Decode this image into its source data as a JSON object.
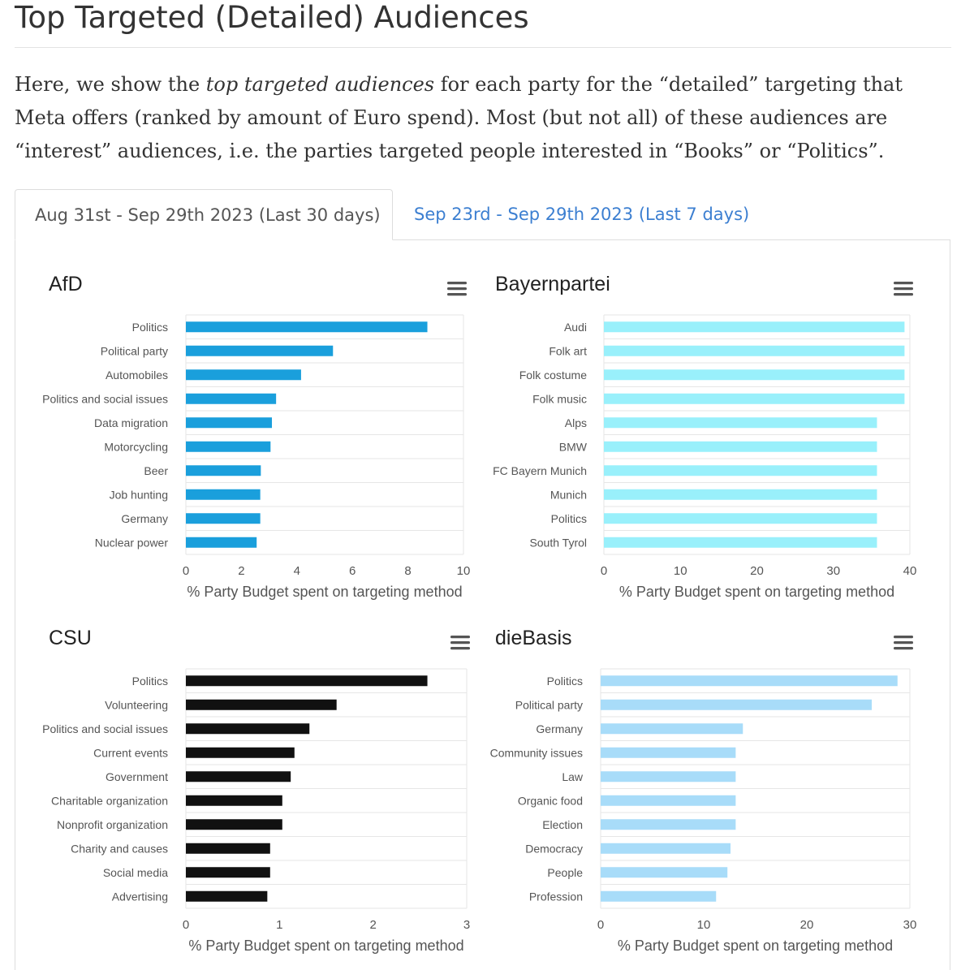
{
  "page": {
    "heading": "Top Targeted (Detailed) Audiences",
    "intro_before": "Here, we show the ",
    "intro_em": "top targeted audiences",
    "intro_after": " for each party for the “detailed” targeting that Meta offers (ranked by amount of Euro spend). Most (but not all) of these audiences are “interest” audiences, i.e. the parties targeted people interested in “Books” or “Politics”."
  },
  "tabs": [
    {
      "label": "Aug 31st - Sep 29th 2023 (Last 30 days)",
      "active": true
    },
    {
      "label": "Sep 23rd - Sep 29th 2023 (Last 7 days)",
      "active": false
    }
  ],
  "menu_icon": "hamburger-menu-icon",
  "chart_data": [
    {
      "type": "bar",
      "title": "AfD",
      "color": "#1a9fdc",
      "categories": [
        "Politics",
        "Political party",
        "Automobiles",
        "Politics and social issues",
        "Data migration",
        "Motorcycling",
        "Beer",
        "Job hunting",
        "Germany",
        "Nuclear power"
      ],
      "values": [
        8.7,
        5.3,
        4.15,
        3.25,
        3.1,
        3.05,
        2.7,
        2.68,
        2.68,
        2.55
      ],
      "xlim": [
        0,
        10
      ],
      "xticks": [
        "0",
        "2",
        "4",
        "6",
        "8",
        "10"
      ],
      "xlabel": "% Party Budget spent on targeting method"
    },
    {
      "type": "bar",
      "title": "Bayernpartei",
      "color": "#99f0fb",
      "categories": [
        "Audi",
        "Folk art",
        "Folk costume",
        "Folk music",
        "Alps",
        "BMW",
        "FC Bayern Munich",
        "Munich",
        "Politics",
        "South Tyrol"
      ],
      "values": [
        39.3,
        39.3,
        39.3,
        39.3,
        35.7,
        35.7,
        35.7,
        35.7,
        35.7,
        35.7
      ],
      "xlim": [
        0,
        40
      ],
      "xticks": [
        "0",
        "10",
        "20",
        "30",
        "40"
      ],
      "xlabel": "% Party Budget spent on targeting method"
    },
    {
      "type": "bar",
      "title": "CSU",
      "color": "#111111",
      "categories": [
        "Politics",
        "Volunteering",
        "Politics and social issues",
        "Current events",
        "Government",
        "Charitable organization",
        "Nonprofit organization",
        "Charity and causes",
        "Social media",
        "Advertising"
      ],
      "values": [
        2.58,
        1.61,
        1.32,
        1.16,
        1.12,
        1.03,
        1.03,
        0.9,
        0.9,
        0.87
      ],
      "xlim": [
        0,
        3
      ],
      "xticks": [
        "0",
        "1",
        "2",
        "3"
      ],
      "xlabel": "% Party Budget spent on targeting method"
    },
    {
      "type": "bar",
      "title": "dieBasis",
      "color": "#a8dcf9",
      "categories": [
        "Politics",
        "Political party",
        "Germany",
        "Community issues",
        "Law",
        "Organic food",
        "Election",
        "Democracy",
        "People",
        "Profession"
      ],
      "values": [
        28.8,
        26.3,
        13.8,
        13.1,
        13.1,
        13.1,
        13.1,
        12.6,
        12.3,
        11.2
      ],
      "xlim": [
        0,
        30
      ],
      "xticks": [
        "0",
        "10",
        "20",
        "30"
      ],
      "xlabel": "% Party Budget spent on targeting method"
    }
  ]
}
